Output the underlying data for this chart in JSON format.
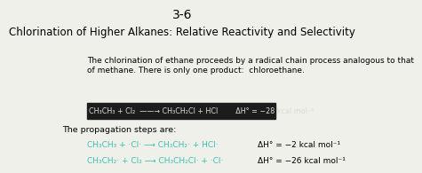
{
  "title": "3-6",
  "subtitle": "Chlorination of Higher Alkanes: Relative Reactivity and Selectivity",
  "body_line1": "The chlorination of ethane proceeds by a radical chain process analogous to that",
  "body_line2": "of methane. There is only one product:  chloroethane.",
  "box_text": "CH₃CH₃ + Cl₂  ——→ CH₃CH₂Cl + HCl        ΔH° = −28 kcal mol⁻¹",
  "propagation_label": "The propagation steps are:",
  "step1_teal": "CH₃CH₃ + ·Cl· ⟶ CH₃CH₂· + HCl·   ",
  "step1_black": "ΔH° = −2 kcal mol⁻¹",
  "step2_teal": "CH₃CH₂· + Cl₂ ⟶ CH₃CH₂Cl· + ·Cl· ",
  "step2_black": "ΔH° = −26 kcal mol⁻¹",
  "teal_color": "#3bbfb5",
  "bg_color": "#f0f0eb",
  "box_bg": "#1c1c1c",
  "box_text_color": "#dcdcd4"
}
